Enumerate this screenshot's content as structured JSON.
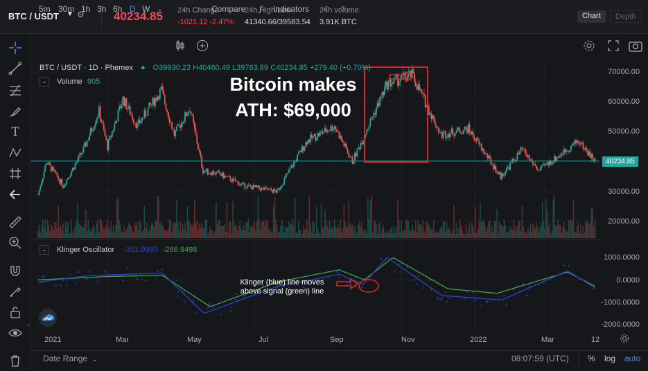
{
  "ticker": {
    "pair": "BTC / USDT",
    "price": "40234.85",
    "change_label": "24h Change",
    "change_value": "-1021.12 -2.47%",
    "highlow_label": "24h High/Low",
    "highlow_value": "41340.66/39583.54",
    "volume_label": "24h volume",
    "volume_value": "3.91K BTC",
    "views": [
      "Chart",
      "Depth"
    ],
    "active_view": "Chart"
  },
  "toolbar": {
    "timeframes": [
      "5m",
      "30m",
      "1h",
      "3h",
      "6h",
      "D",
      "W"
    ],
    "selected_timeframe": "D",
    "compare_label": "Compare",
    "indicators_label": "Indicators"
  },
  "legend": {
    "symbol": "BTC / USDT · 1D · Phemex",
    "ohlc": "O39930.23 H40460.49 L39763.89 C40234.85 +279.40 (+0.70%)",
    "volume_label": "Volume",
    "volume_value": "905",
    "klinger_label": "Klinger Oscillator",
    "klinger_value1": "-351.9985",
    "klinger_value2": "-286.9498"
  },
  "annotations": {
    "title_line1": "Bitcoin makes",
    "title_line2": "ATH: $69,000",
    "klinger_line1": "Klinger (blue) line moves",
    "klinger_line2": "above signal (green) line"
  },
  "price_axis": [
    "70000.00",
    "60000.00",
    "50000.00",
    "30000.00",
    "20000.00"
  ],
  "price_tag": "40234.85",
  "osc_axis": [
    "1000.0000",
    "0.0000",
    "-1000.0000",
    "-2000.0000"
  ],
  "time_axis": [
    "2021",
    "Mar",
    "May",
    "Jul",
    "Sep",
    "Nov",
    "2022",
    "Mar",
    "12"
  ],
  "bottom": {
    "date_range": "Date Range",
    "clock": "08:07:59 (UTC)",
    "percent": "%",
    "log": "log",
    "auto": "auto"
  },
  "colors": {
    "up": "#26a69a",
    "down": "#ef5350",
    "price_down": "#ee4f5a",
    "accent": "#4b8cf0",
    "klinger": "#2a45c9",
    "signal": "#3aa64a",
    "annotation_box": "#e02424"
  },
  "chart_data": {
    "type": "candlestick",
    "period": "1D",
    "price_range": [
      17000,
      74000
    ],
    "current_price": 40234.85,
    "price_series": [
      {
        "x": "2021-01-01",
        "y": 29000
      },
      {
        "x": "2021-01-08",
        "y": 40000
      },
      {
        "x": "2021-01-22",
        "y": 32000
      },
      {
        "x": "2021-02-08",
        "y": 44000
      },
      {
        "x": "2021-02-21",
        "y": 57000
      },
      {
        "x": "2021-02-28",
        "y": 45000
      },
      {
        "x": "2021-03-13",
        "y": 61000
      },
      {
        "x": "2021-03-25",
        "y": 52000
      },
      {
        "x": "2021-04-14",
        "y": 64000
      },
      {
        "x": "2021-04-25",
        "y": 49000
      },
      {
        "x": "2021-05-08",
        "y": 58000
      },
      {
        "x": "2021-05-19",
        "y": 37000
      },
      {
        "x": "2021-06-01",
        "y": 36000
      },
      {
        "x": "2021-06-22",
        "y": 32000
      },
      {
        "x": "2021-07-20",
        "y": 30000
      },
      {
        "x": "2021-08-14",
        "y": 47000
      },
      {
        "x": "2021-09-06",
        "y": 52000
      },
      {
        "x": "2021-09-21",
        "y": 40000
      },
      {
        "x": "2021-10-20",
        "y": 66000
      },
      {
        "x": "2021-11-10",
        "y": 69000
      },
      {
        "x": "2021-12-04",
        "y": 49000
      },
      {
        "x": "2021-12-27",
        "y": 51000
      },
      {
        "x": "2022-01-23",
        "y": 35000
      },
      {
        "x": "2022-02-10",
        "y": 44000
      },
      {
        "x": "2022-02-24",
        "y": 37000
      },
      {
        "x": "2022-03-29",
        "y": 47000
      },
      {
        "x": "2022-04-12",
        "y": 40234
      }
    ],
    "volume_range": [
      0,
      905
    ],
    "oscillator_range": [
      -2000,
      1000
    ],
    "klinger_series": [
      {
        "x": "2021-01-01",
        "y": -100
      },
      {
        "x": "2021-02-15",
        "y": 200
      },
      {
        "x": "2021-04-15",
        "y": 300
      },
      {
        "x": "2021-05-20",
        "y": -1500
      },
      {
        "x": "2021-07-20",
        "y": -300
      },
      {
        "x": "2021-09-10",
        "y": 250
      },
      {
        "x": "2021-09-30",
        "y": -200
      },
      {
        "x": "2021-10-20",
        "y": 1000
      },
      {
        "x": "2021-12-05",
        "y": -700
      },
      {
        "x": "2022-01-24",
        "y": -900
      },
      {
        "x": "2022-03-20",
        "y": 400
      },
      {
        "x": "2022-04-12",
        "y": -352
      }
    ],
    "signal_series": [
      {
        "x": "2021-01-01",
        "y": 0
      },
      {
        "x": "2021-03-01",
        "y": 150
      },
      {
        "x": "2021-04-15",
        "y": 200
      },
      {
        "x": "2021-05-25",
        "y": -1200
      },
      {
        "x": "2021-07-20",
        "y": -100
      },
      {
        "x": "2021-09-10",
        "y": 450
      },
      {
        "x": "2021-10-01",
        "y": 0
      },
      {
        "x": "2021-10-25",
        "y": 1000
      },
      {
        "x": "2021-12-10",
        "y": -400
      },
      {
        "x": "2022-01-20",
        "y": -600
      },
      {
        "x": "2022-03-20",
        "y": 350
      },
      {
        "x": "2022-04-12",
        "y": -287
      }
    ]
  }
}
